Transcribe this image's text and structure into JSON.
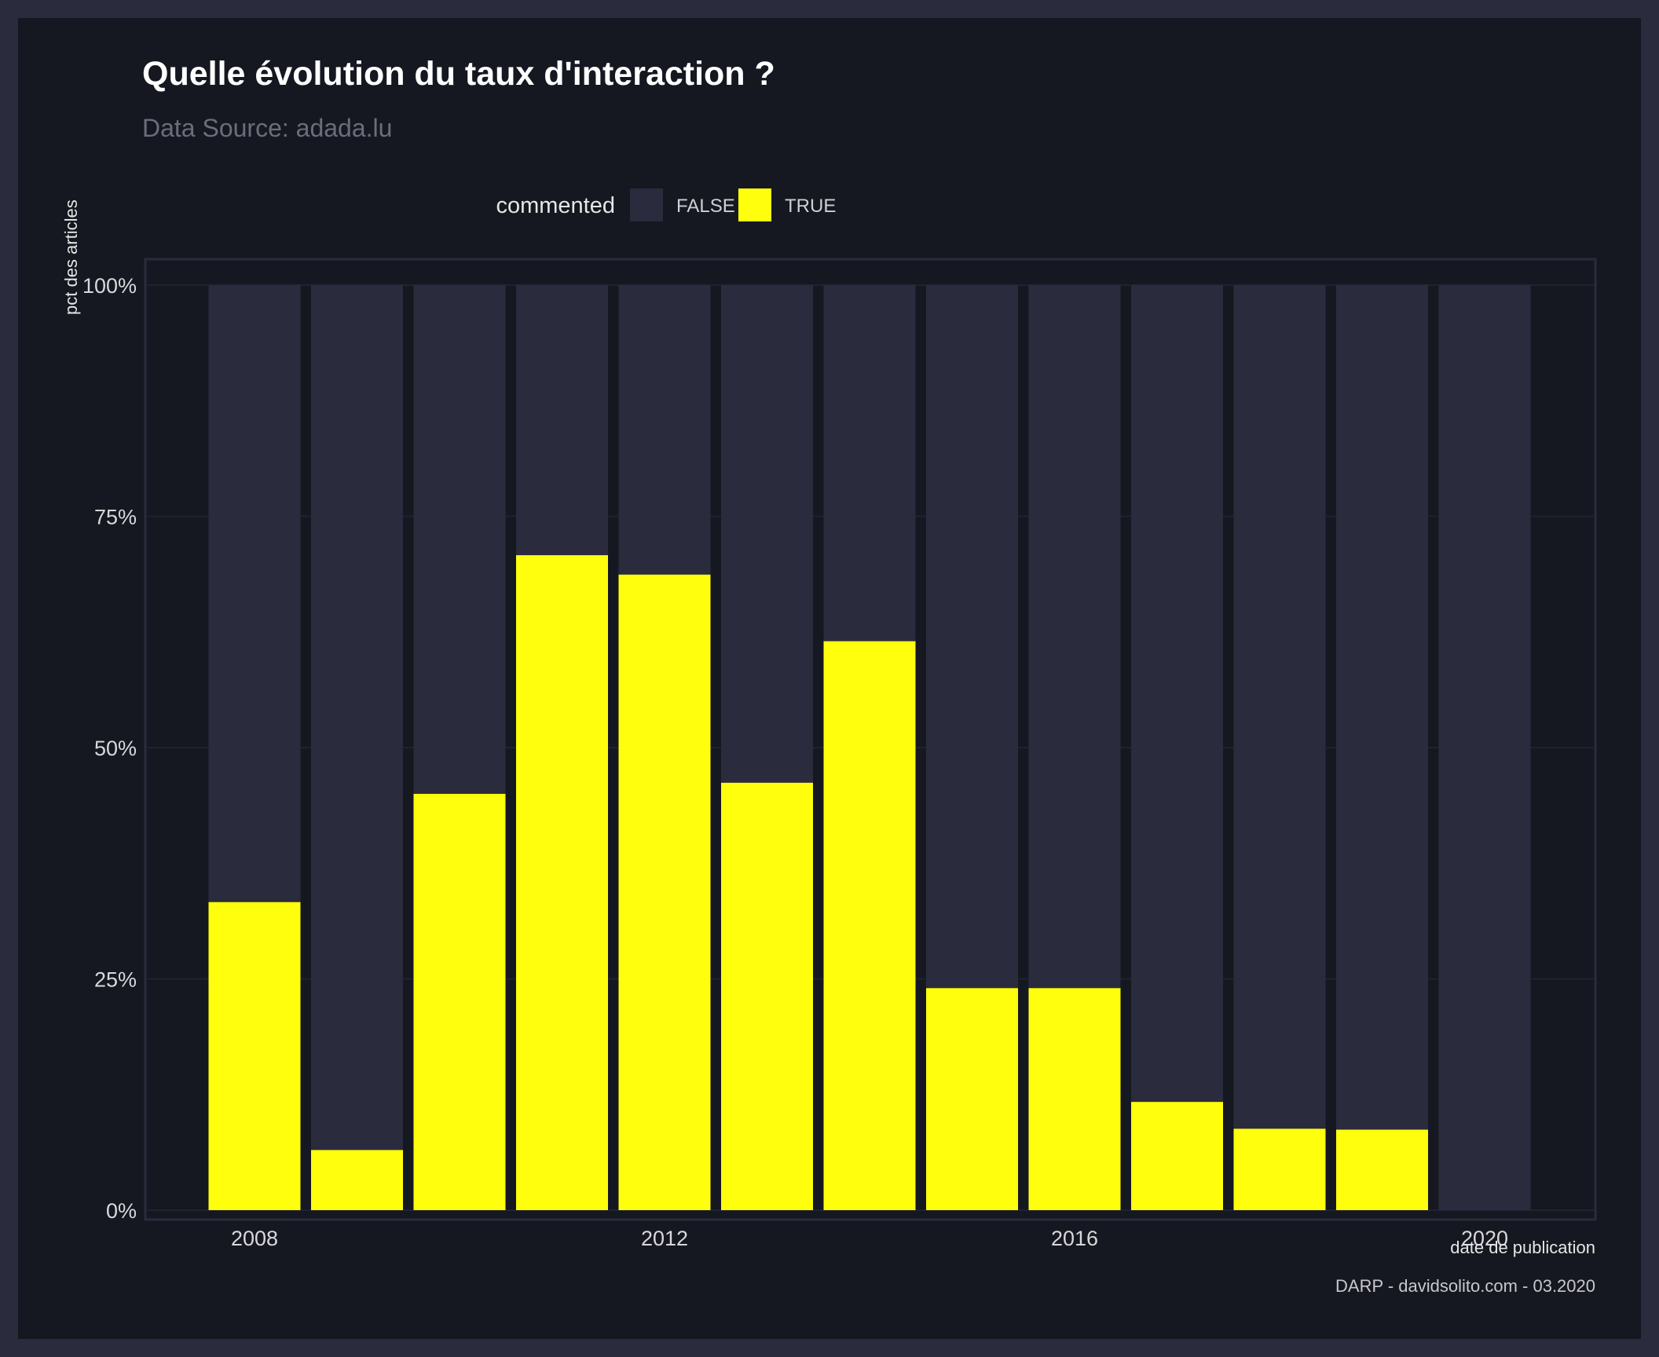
{
  "chart_data": {
    "type": "bar",
    "stacked": "fill",
    "title": "Quelle évolution du taux d'interaction ?",
    "subtitle": "Data Source: adada.lu",
    "xlabel": "date de publication",
    "ylabel": "pct des articles",
    "caption": "DARP - davidsolito.com - 03.2020",
    "legend": {
      "title": "commented",
      "position": "top",
      "items": [
        {
          "label": "FALSE",
          "color": "#2a2b3d"
        },
        {
          "label": "TRUE",
          "color": "#ffff0d"
        }
      ]
    },
    "x": [
      2008,
      2009,
      2010,
      2011,
      2012,
      2013,
      2014,
      2015,
      2016,
      2017,
      2018,
      2019,
      2020
    ],
    "xticks": [
      "2008",
      "2012",
      "2016",
      "2020"
    ],
    "xtick_values": [
      2008,
      2012,
      2016,
      2020
    ],
    "yticks": [
      "0%",
      "25%",
      "50%",
      "75%",
      "100%"
    ],
    "ytick_values": [
      0,
      0.25,
      0.5,
      0.75,
      1.0
    ],
    "ylim": [
      0,
      1
    ],
    "series": [
      {
        "name": "FALSE",
        "values": [
          0.667,
          0.935,
          0.55,
          0.292,
          0.313,
          0.538,
          0.385,
          0.76,
          0.76,
          0.883,
          0.912,
          0.913,
          1.0
        ]
      },
      {
        "name": "TRUE",
        "values": [
          0.333,
          0.065,
          0.45,
          0.708,
          0.687,
          0.462,
          0.615,
          0.24,
          0.24,
          0.117,
          0.088,
          0.087,
          0.0
        ]
      }
    ],
    "grid": true,
    "colors": {
      "background": "#151820",
      "frame": "#2a2b3d",
      "false": "#2a2b3d",
      "true": "#ffff0d"
    }
  }
}
